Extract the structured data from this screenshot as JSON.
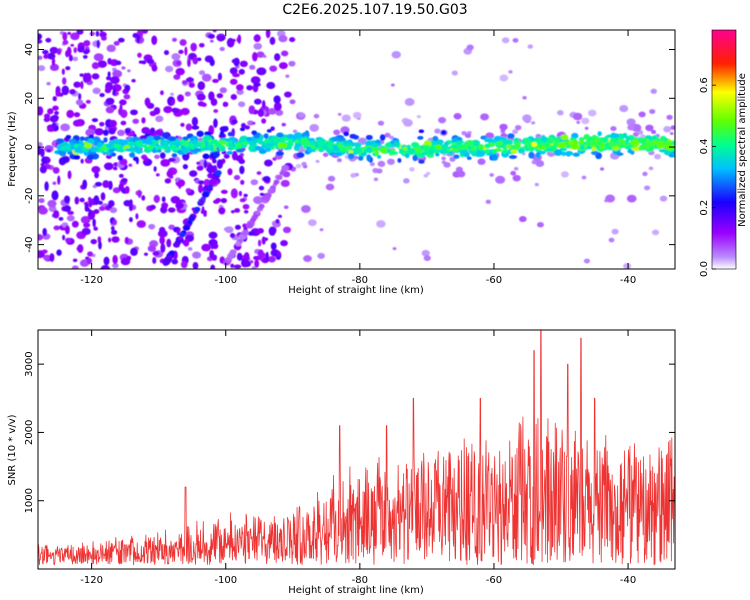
{
  "title": "C2E6.2025.107.19.50.G03",
  "chart_data": [
    {
      "type": "heatmap",
      "xlabel": "Height of straight line (km)",
      "ylabel": "Frequency (Hz)",
      "xlim": [
        -128,
        -33
      ],
      "ylim": [
        -50,
        48
      ],
      "xticks": [
        -120,
        -100,
        -80,
        -60,
        -40
      ],
      "yticks": [
        -40,
        -20,
        0,
        20,
        40
      ],
      "colorbar": {
        "label": "Normalized spectral amplitude",
        "range": [
          0.0,
          0.78
        ],
        "ticks": [
          0.0,
          0.2,
          0.4,
          0.6
        ],
        "tick_labels": [
          "0.0",
          "0.2",
          "0.4",
          "0.6"
        ],
        "colors": [
          "#ffffff",
          "#9b00ff",
          "#0000ff",
          "#00ffff",
          "#00ff00",
          "#ffff00",
          "#ff0000",
          "#ff0080"
        ]
      },
      "ridge": {
        "center_hz": [
          [
            -120,
            0
          ],
          [
            -100,
            1
          ],
          [
            -90,
            2
          ],
          [
            -80,
            -1
          ],
          [
            -60,
            0
          ],
          [
            -40,
            2
          ],
          [
            -33,
            1
          ]
        ],
        "width_hz": 10
      },
      "grid": false
    },
    {
      "type": "line",
      "xlabel": "Height of straight line (km)",
      "ylabel": "SNR (10 * v/v)",
      "xlim": [
        -128,
        -33
      ],
      "ylim": [
        0,
        3500
      ],
      "xticks": [
        -120,
        -100,
        -80,
        -60,
        -40
      ],
      "yticks": [
        1000,
        2000,
        3000
      ],
      "color": "#ee3333",
      "envelope": {
        "x": [
          -128,
          -120,
          -110,
          -100,
          -90,
          -85,
          -80,
          -75,
          -70,
          -65,
          -60,
          -55,
          -50,
          -45,
          -40,
          -35,
          -33
        ],
        "y": [
          300,
          400,
          550,
          800,
          900,
          1300,
          1600,
          1700,
          1800,
          1900,
          2000,
          2400,
          2100,
          2000,
          1900,
          1900,
          2000
        ]
      },
      "peaks": [
        {
          "x": -53,
          "y": 3500
        },
        {
          "x": -54,
          "y": 3200
        },
        {
          "x": -47,
          "y": 3380
        },
        {
          "x": -49,
          "y": 3000
        },
        {
          "x": -72,
          "y": 2500
        },
        {
          "x": -62,
          "y": 2500
        },
        {
          "x": -45,
          "y": 2500
        },
        {
          "x": -83,
          "y": 2100
        },
        {
          "x": -76,
          "y": 2100
        },
        {
          "x": -106,
          "y": 1200
        }
      ]
    }
  ]
}
